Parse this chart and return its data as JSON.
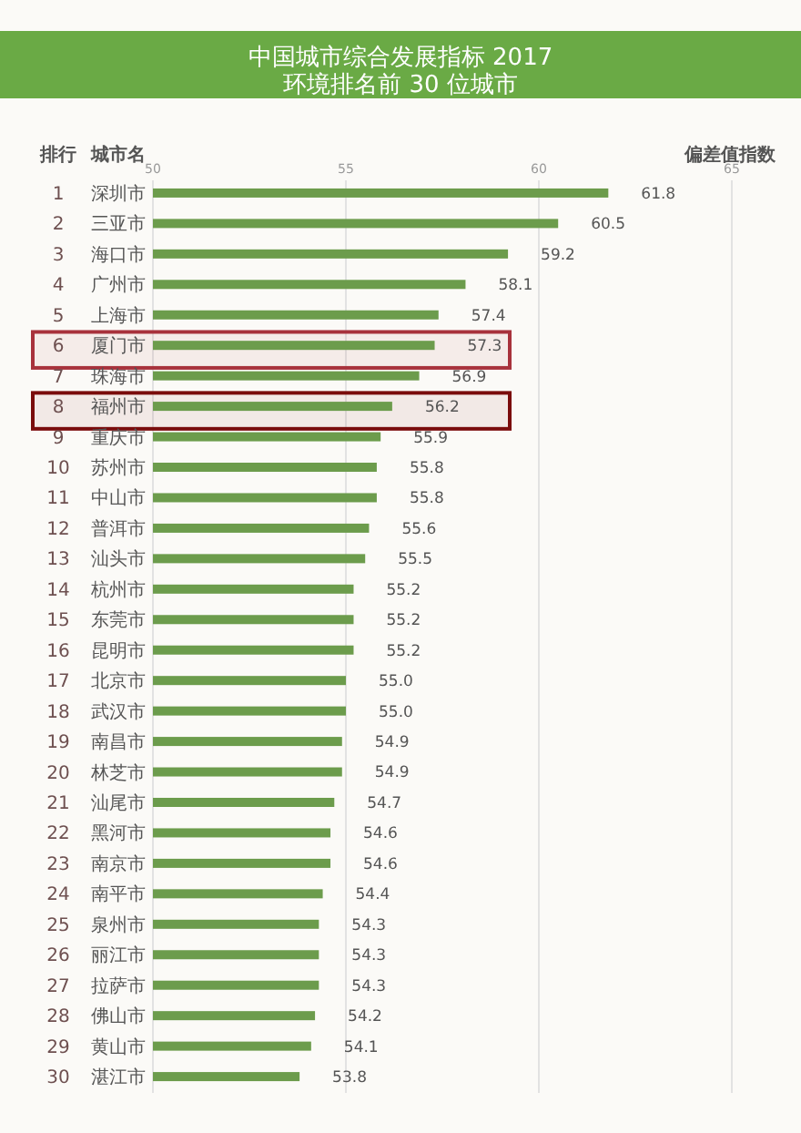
{
  "chart_data": {
    "type": "bar",
    "orientation": "horizontal",
    "title": "中国城市综合发展指标 2017",
    "subtitle": "环境排名前 30 位城市",
    "ylabel": "城市名",
    "xlabel": "偏差值指数",
    "annotations": [
      "排行"
    ],
    "categories": [
      "1 深圳市",
      "2 三亚市",
      "3 海口市",
      "4 广州市",
      "5 上海市",
      "6 厦门市",
      "7 珠海市",
      "8 福州市",
      "9 重庆市",
      "10 苏州市",
      "11 中山市",
      "12 普洱市",
      "13 汕头市",
      "14 杭州市",
      "15 东莞市",
      "16 昆明市",
      "17 北京市",
      "18 武汉市",
      "19 南昌市",
      "20 林芝市",
      "21 汕尾市",
      "22 黑河市",
      "23 南京市",
      "24 南平市",
      "25 泉州市",
      "26 丽江市",
      "27 拉萨市",
      "28 佛山市",
      "29 黄山市",
      "30 湛江市"
    ],
    "values": [
      61.8,
      60.5,
      59.2,
      58.1,
      57.4,
      57.3,
      56.9,
      56.2,
      55.9,
      55.8,
      55.8,
      55.6,
      55.5,
      55.2,
      55.2,
      55.2,
      55.0,
      55.0,
      54.9,
      54.9,
      54.7,
      54.6,
      54.6,
      54.4,
      54.3,
      54.3,
      54.3,
      54.2,
      54.1,
      53.8
    ],
    "value_labels": [
      "61.8",
      "60.5",
      "59.2",
      "58.1",
      "57.4",
      "57.3",
      "56.9",
      "56.2",
      "55.9",
      "55.8",
      "55.8",
      "55.6",
      "55.5",
      "55.2",
      "55.2",
      "55.2",
      "55.0",
      "55.0",
      "54.9",
      "54.9",
      "54.7",
      "54.6",
      "54.6",
      "54.4",
      "54.3",
      "54.3",
      "54.3",
      "54.2",
      "54.1",
      "53.8"
    ],
    "color": "#6c9c4c",
    "xlim": [
      50,
      65
    ],
    "xticks": [
      50,
      55,
      60,
      65
    ],
    "grid": "x",
    "bands": [
      {
        "axis": "y",
        "from": "6 厦门市",
        "to": "6 厦门市",
        "color": "#a8323c"
      },
      {
        "axis": "y",
        "from": "8 福州市",
        "to": "8 福州市",
        "color": "#7a0c0c"
      }
    ]
  }
}
